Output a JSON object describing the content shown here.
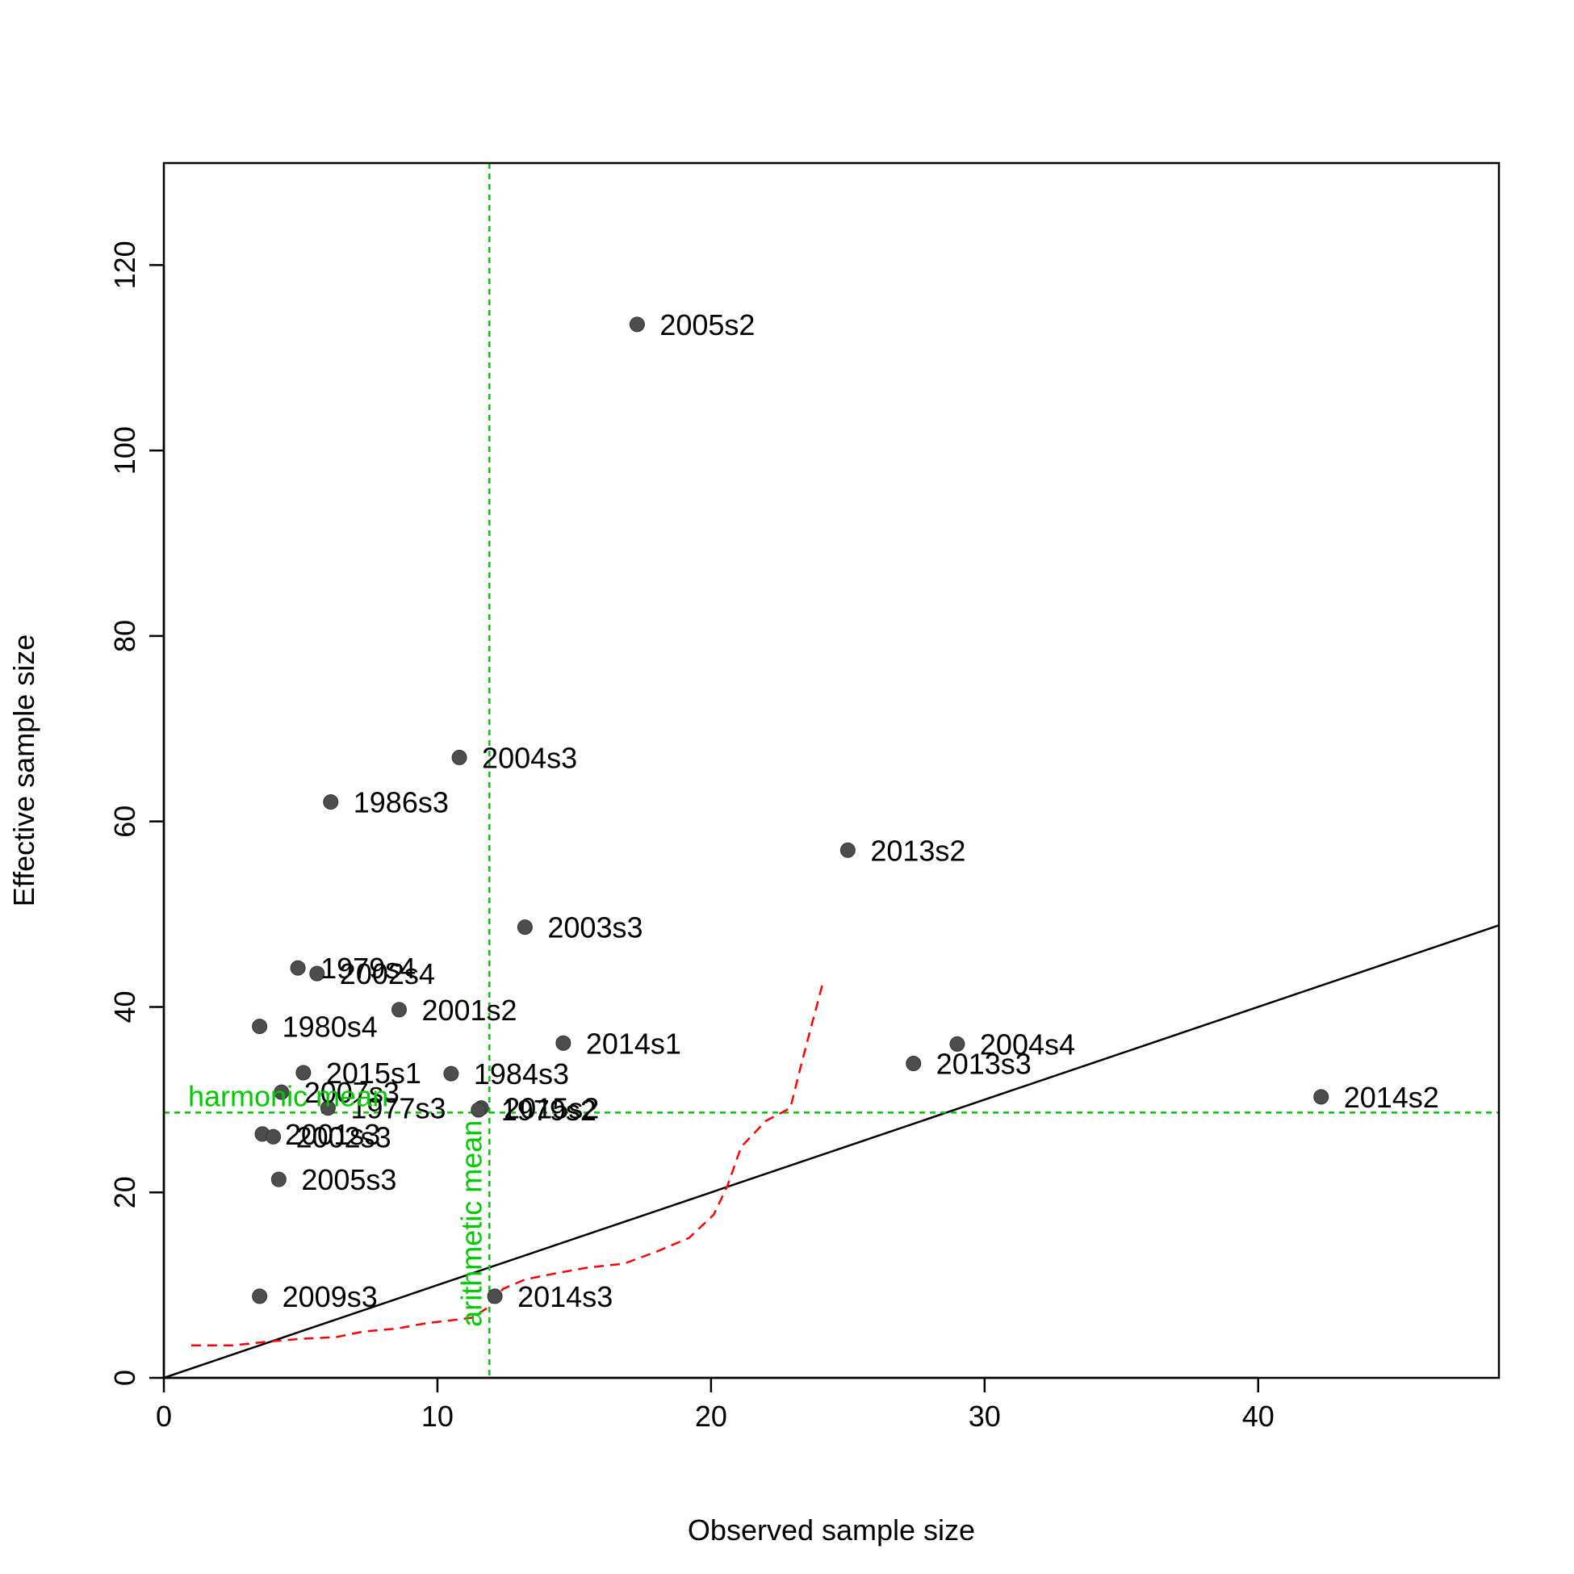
{
  "chart_data": {
    "type": "scatter",
    "title": "",
    "xlabel": "Observed sample size",
    "ylabel": "Effective sample size",
    "xlim": [
      0,
      48.8
    ],
    "ylim": [
      0,
      131
    ],
    "xticks": [
      0,
      10,
      20,
      30,
      40
    ],
    "yticks": [
      0,
      20,
      40,
      60,
      80,
      100,
      120
    ],
    "grid": false,
    "points": [
      {
        "label": "2005s2",
        "x": 17.3,
        "y": 113.6
      },
      {
        "label": "2004s3",
        "x": 10.8,
        "y": 66.9
      },
      {
        "label": "1986s3",
        "x": 6.1,
        "y": 62.1
      },
      {
        "label": "2013s2",
        "x": 25.0,
        "y": 56.9
      },
      {
        "label": "2003s3",
        "x": 13.2,
        "y": 48.6
      },
      {
        "label": "1979s4",
        "x": 4.9,
        "y": 44.2
      },
      {
        "label": "2002s4",
        "x": 5.6,
        "y": 43.6
      },
      {
        "label": "2001s2",
        "x": 8.6,
        "y": 39.7
      },
      {
        "label": "1980s4",
        "x": 3.5,
        "y": 37.9
      },
      {
        "label": "2014s1",
        "x": 14.6,
        "y": 36.1
      },
      {
        "label": "2004s4",
        "x": 29.0,
        "y": 36.0
      },
      {
        "label": "2013s3",
        "x": 27.4,
        "y": 33.9
      },
      {
        "label": "2015s1",
        "x": 5.1,
        "y": 32.9
      },
      {
        "label": "1984s3",
        "x": 10.5,
        "y": 32.8
      },
      {
        "label": "2007s3",
        "x": 4.3,
        "y": 30.8
      },
      {
        "label": "2014s2",
        "x": 42.3,
        "y": 30.3
      },
      {
        "label": "1977s3",
        "x": 6.0,
        "y": 29.1
      },
      {
        "label": "2015s2",
        "x": 11.6,
        "y": 29.1
      },
      {
        "label": "1979s2",
        "x": 11.5,
        "y": 28.9
      },
      {
        "label": "2001s3",
        "x": 3.6,
        "y": 26.3
      },
      {
        "label": "2002s3",
        "x": 4.0,
        "y": 26.0
      },
      {
        "label": "2005s3",
        "x": 4.2,
        "y": 21.4
      },
      {
        "label": "2009s3",
        "x": 3.5,
        "y": 8.8
      },
      {
        "label": "2014s3",
        "x": 12.1,
        "y": 8.8
      }
    ],
    "reference_lines": {
      "identity": {
        "slope": 1,
        "color": "#000000"
      },
      "harmonic_mean": {
        "label": "harmonic mean",
        "y": 28.6,
        "color": "#00cd00"
      },
      "arithmetic_mean": {
        "label": "arithmetic mean",
        "x": 11.9,
        "color": "#00cd00"
      }
    },
    "smoother": {
      "color": "#ff0000",
      "x": [
        1.0,
        2.5,
        3.8,
        5.0,
        6.3,
        7.3,
        8.5,
        9.6,
        10.5,
        11.3,
        11.8,
        12.4,
        13.2,
        14.2,
        15.5,
        16.8,
        18.0,
        19.2,
        20.1,
        20.6,
        21.1,
        22.0,
        22.9,
        23.3,
        23.7,
        24.1
      ],
      "y": [
        3.5,
        3.5,
        3.9,
        4.2,
        4.4,
        5.0,
        5.3,
        5.9,
        6.2,
        6.5,
        7.5,
        9.6,
        10.6,
        11.2,
        11.9,
        12.3,
        13.6,
        15.1,
        17.6,
        20.7,
        24.9,
        27.7,
        29.1,
        33.8,
        38.3,
        42.7
      ]
    },
    "point_color": "#4d4d4d"
  }
}
